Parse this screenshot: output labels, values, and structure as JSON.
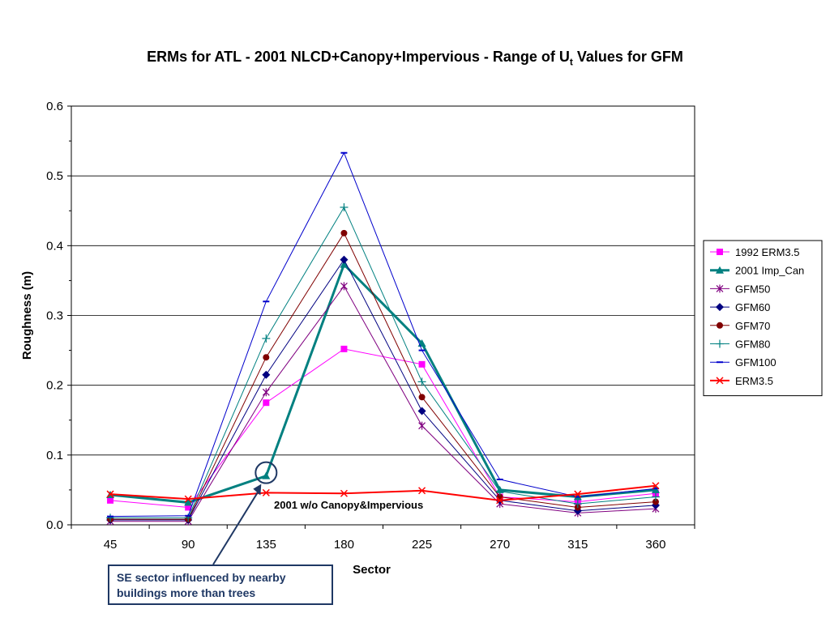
{
  "chart_data": {
    "type": "line",
    "title_main": "ERMs for ATL - 2001 NLCD+Canopy+Impervious - Range of U",
    "title_sub": "t",
    "title_end": " Values for GFM",
    "xlabel": "Sector",
    "ylabel": "Roughness (m)",
    "categories": [
      "45",
      "90",
      "135",
      "180",
      "225",
      "270",
      "315",
      "360"
    ],
    "ylim": [
      0,
      0.6
    ],
    "yticks": [
      "0.0",
      "0.1",
      "0.2",
      "0.3",
      "0.4",
      "0.5",
      "0.6"
    ],
    "legend_position": "right",
    "grid": "horizontal",
    "series": [
      {
        "name": "1992 ERM3.5",
        "color": "#ff00ff",
        "marker": "square",
        "width": 1,
        "values": [
          0.035,
          0.025,
          0.175,
          0.252,
          0.23,
          0.04,
          0.033,
          0.045
        ]
      },
      {
        "name": "2001 Imp_Can",
        "color": "#008080",
        "marker": "triangle",
        "width": 3,
        "values": [
          0.043,
          0.032,
          0.07,
          0.373,
          0.26,
          0.05,
          0.04,
          0.05
        ]
      },
      {
        "name": "GFM50",
        "color": "#800080",
        "marker": "star",
        "width": 1,
        "values": [
          0.005,
          0.005,
          0.19,
          0.342,
          0.142,
          0.03,
          0.017,
          0.023
        ]
      },
      {
        "name": "GFM60",
        "color": "#000080",
        "marker": "diamond",
        "width": 1,
        "values": [
          0.007,
          0.007,
          0.215,
          0.38,
          0.163,
          0.035,
          0.02,
          0.028
        ]
      },
      {
        "name": "GFM70",
        "color": "#800000",
        "marker": "circle",
        "width": 1,
        "values": [
          0.008,
          0.008,
          0.24,
          0.418,
          0.183,
          0.04,
          0.025,
          0.033
        ]
      },
      {
        "name": "GFM80",
        "color": "#008080",
        "marker": "plus",
        "width": 1,
        "values": [
          0.01,
          0.01,
          0.267,
          0.455,
          0.205,
          0.048,
          0.03,
          0.04
        ]
      },
      {
        "name": "GFM100",
        "color": "#0000cc",
        "marker": "dash",
        "width": 1,
        "values": [
          0.012,
          0.013,
          0.32,
          0.533,
          0.25,
          0.065,
          0.04,
          0.052
        ]
      },
      {
        "name": "ERM3.5",
        "color": "#ff0000",
        "marker": "x",
        "width": 2,
        "values": [
          0.044,
          0.037,
          0.046,
          0.045,
          0.049,
          0.035,
          0.044,
          0.056
        ]
      }
    ],
    "annotations": {
      "inner_label": "2001 w/o Canopy&Impervious",
      "callout": "SE sector influenced by nearby buildings more than trees"
    }
  }
}
